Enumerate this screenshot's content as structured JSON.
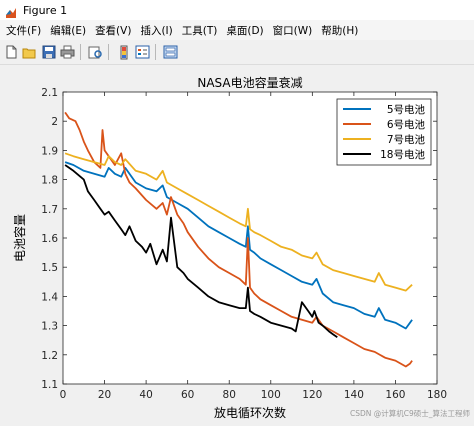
{
  "window": {
    "title": "Figure 1"
  },
  "menu": [
    "文件(F)",
    "编辑(E)",
    "查看(V)",
    "插入(I)",
    "工具(T)",
    "桌面(D)",
    "窗口(W)",
    "帮助(H)"
  ],
  "toolbar": [
    "new-file-icon",
    "open-folder-icon",
    "save-icon",
    "print-icon",
    "print-preview-icon",
    "colorbar-icon",
    "legend-icon",
    "property-editor-icon"
  ],
  "watermark": "CSDN @计算机C9硕士_算法工程师",
  "chart_data": {
    "type": "line",
    "title": "NASA电池容量衰减",
    "xlabel": "放电循环次数",
    "ylabel": "电池容量",
    "xlim": [
      0,
      180
    ],
    "ylim": [
      1.1,
      2.1
    ],
    "xticks": [
      0,
      20,
      40,
      60,
      80,
      100,
      120,
      140,
      160,
      180
    ],
    "yticks": [
      1.1,
      1.2,
      1.3,
      1.4,
      1.5,
      1.6,
      1.7,
      1.8,
      1.9,
      2,
      2.1
    ],
    "grid": false,
    "legend_position": "top-right",
    "series": [
      {
        "name": "5号电池",
        "color": "#0072bd",
        "x": [
          1,
          5,
          10,
          15,
          20,
          22,
          25,
          28,
          30,
          35,
          40,
          45,
          48,
          50,
          55,
          60,
          65,
          70,
          75,
          80,
          85,
          88,
          89,
          90,
          92,
          95,
          100,
          105,
          110,
          115,
          120,
          122,
          125,
          130,
          135,
          140,
          145,
          150,
          152,
          155,
          160,
          165,
          168
        ],
        "y": [
          1.86,
          1.85,
          1.83,
          1.82,
          1.81,
          1.84,
          1.82,
          1.81,
          1.84,
          1.79,
          1.77,
          1.76,
          1.78,
          1.74,
          1.72,
          1.7,
          1.67,
          1.64,
          1.62,
          1.6,
          1.58,
          1.57,
          1.64,
          1.56,
          1.55,
          1.53,
          1.51,
          1.49,
          1.47,
          1.45,
          1.44,
          1.46,
          1.41,
          1.38,
          1.37,
          1.36,
          1.34,
          1.33,
          1.36,
          1.32,
          1.31,
          1.29,
          1.32
        ]
      },
      {
        "name": "6号电池",
        "color": "#d95319",
        "x": [
          1,
          3,
          6,
          8,
          10,
          12,
          15,
          18,
          19,
          20,
          22,
          25,
          28,
          30,
          32,
          35,
          40,
          45,
          48,
          50,
          52,
          55,
          58,
          60,
          65,
          70,
          75,
          80,
          85,
          88,
          89,
          90,
          92,
          95,
          100,
          105,
          110,
          115,
          120,
          122,
          125,
          130,
          135,
          140,
          145,
          150,
          155,
          160,
          165,
          167,
          168
        ],
        "y": [
          2.03,
          2.01,
          2.0,
          1.97,
          1.93,
          1.9,
          1.86,
          1.84,
          1.97,
          1.9,
          1.88,
          1.85,
          1.89,
          1.82,
          1.79,
          1.77,
          1.73,
          1.7,
          1.72,
          1.68,
          1.74,
          1.68,
          1.65,
          1.62,
          1.57,
          1.53,
          1.5,
          1.48,
          1.46,
          1.44,
          1.6,
          1.43,
          1.41,
          1.39,
          1.37,
          1.35,
          1.33,
          1.32,
          1.31,
          1.33,
          1.3,
          1.28,
          1.26,
          1.24,
          1.22,
          1.21,
          1.19,
          1.18,
          1.16,
          1.17,
          1.18
        ]
      },
      {
        "name": "7号电池",
        "color": "#edb120",
        "x": [
          1,
          5,
          10,
          15,
          20,
          22,
          25,
          28,
          30,
          35,
          40,
          45,
          48,
          50,
          55,
          60,
          65,
          70,
          75,
          80,
          85,
          88,
          89,
          90,
          92,
          95,
          100,
          105,
          110,
          115,
          120,
          122,
          125,
          130,
          135,
          140,
          145,
          150,
          152,
          155,
          160,
          165,
          168
        ],
        "y": [
          1.89,
          1.88,
          1.87,
          1.86,
          1.85,
          1.88,
          1.86,
          1.85,
          1.87,
          1.83,
          1.82,
          1.8,
          1.83,
          1.79,
          1.77,
          1.75,
          1.73,
          1.71,
          1.69,
          1.67,
          1.65,
          1.64,
          1.7,
          1.63,
          1.62,
          1.61,
          1.59,
          1.57,
          1.56,
          1.54,
          1.53,
          1.55,
          1.51,
          1.49,
          1.48,
          1.47,
          1.46,
          1.45,
          1.48,
          1.44,
          1.43,
          1.42,
          1.44
        ]
      },
      {
        "name": "18号电池",
        "color": "#000000",
        "x": [
          1,
          5,
          10,
          12,
          15,
          18,
          20,
          22,
          25,
          28,
          30,
          32,
          35,
          38,
          40,
          42,
          45,
          48,
          50,
          52,
          55,
          58,
          60,
          65,
          70,
          75,
          80,
          85,
          88,
          89,
          90,
          92,
          95,
          100,
          105,
          110,
          112,
          115,
          118,
          120,
          121,
          123,
          125,
          128,
          130,
          132
        ],
        "y": [
          1.85,
          1.83,
          1.8,
          1.76,
          1.73,
          1.7,
          1.68,
          1.69,
          1.66,
          1.63,
          1.61,
          1.64,
          1.59,
          1.57,
          1.55,
          1.58,
          1.51,
          1.56,
          1.52,
          1.67,
          1.5,
          1.48,
          1.46,
          1.43,
          1.4,
          1.38,
          1.37,
          1.36,
          1.36,
          1.43,
          1.35,
          1.34,
          1.33,
          1.31,
          1.3,
          1.29,
          1.28,
          1.38,
          1.35,
          1.33,
          1.35,
          1.31,
          1.3,
          1.28,
          1.27,
          1.26
        ]
      }
    ]
  }
}
